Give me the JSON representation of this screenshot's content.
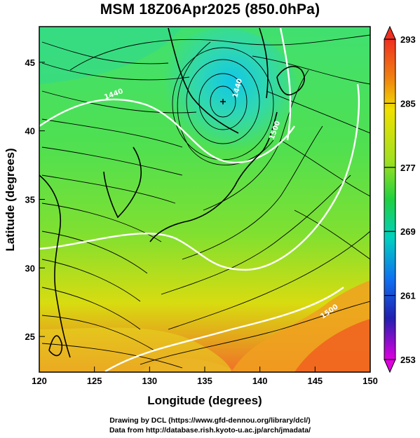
{
  "title": "MSM 18Z06Apr2025 (850.0hPa)",
  "axes": {
    "xlabel": "Longitude (degrees)",
    "ylabel": "Latitude  (degrees)",
    "xticks": [
      "120",
      "125",
      "130",
      "135",
      "140",
      "145",
      "150"
    ],
    "yticks": [
      "25",
      "30",
      "35",
      "40",
      "45"
    ],
    "xlim": [
      120,
      150
    ],
    "ylim": [
      22.4,
      47.6
    ]
  },
  "colorbar": {
    "ticks": [
      "293",
      "285",
      "277",
      "269",
      "261",
      "253"
    ],
    "range": [
      253,
      293
    ],
    "colors": [
      "#e000e0",
      "#3040e0",
      "#00c0e0",
      "#20e060",
      "#a0e020",
      "#f0d000",
      "#f05020"
    ]
  },
  "contour_labels": [
    "1440",
    "1500",
    "1440",
    "1500"
  ],
  "credits": {
    "line1": "Drawing by DCL (https://www.gfd-dennou.org/library/dcl/)",
    "line2": "Data from http://database.rish.kyoto-u.ac.jp/arch/jmadata/"
  }
}
